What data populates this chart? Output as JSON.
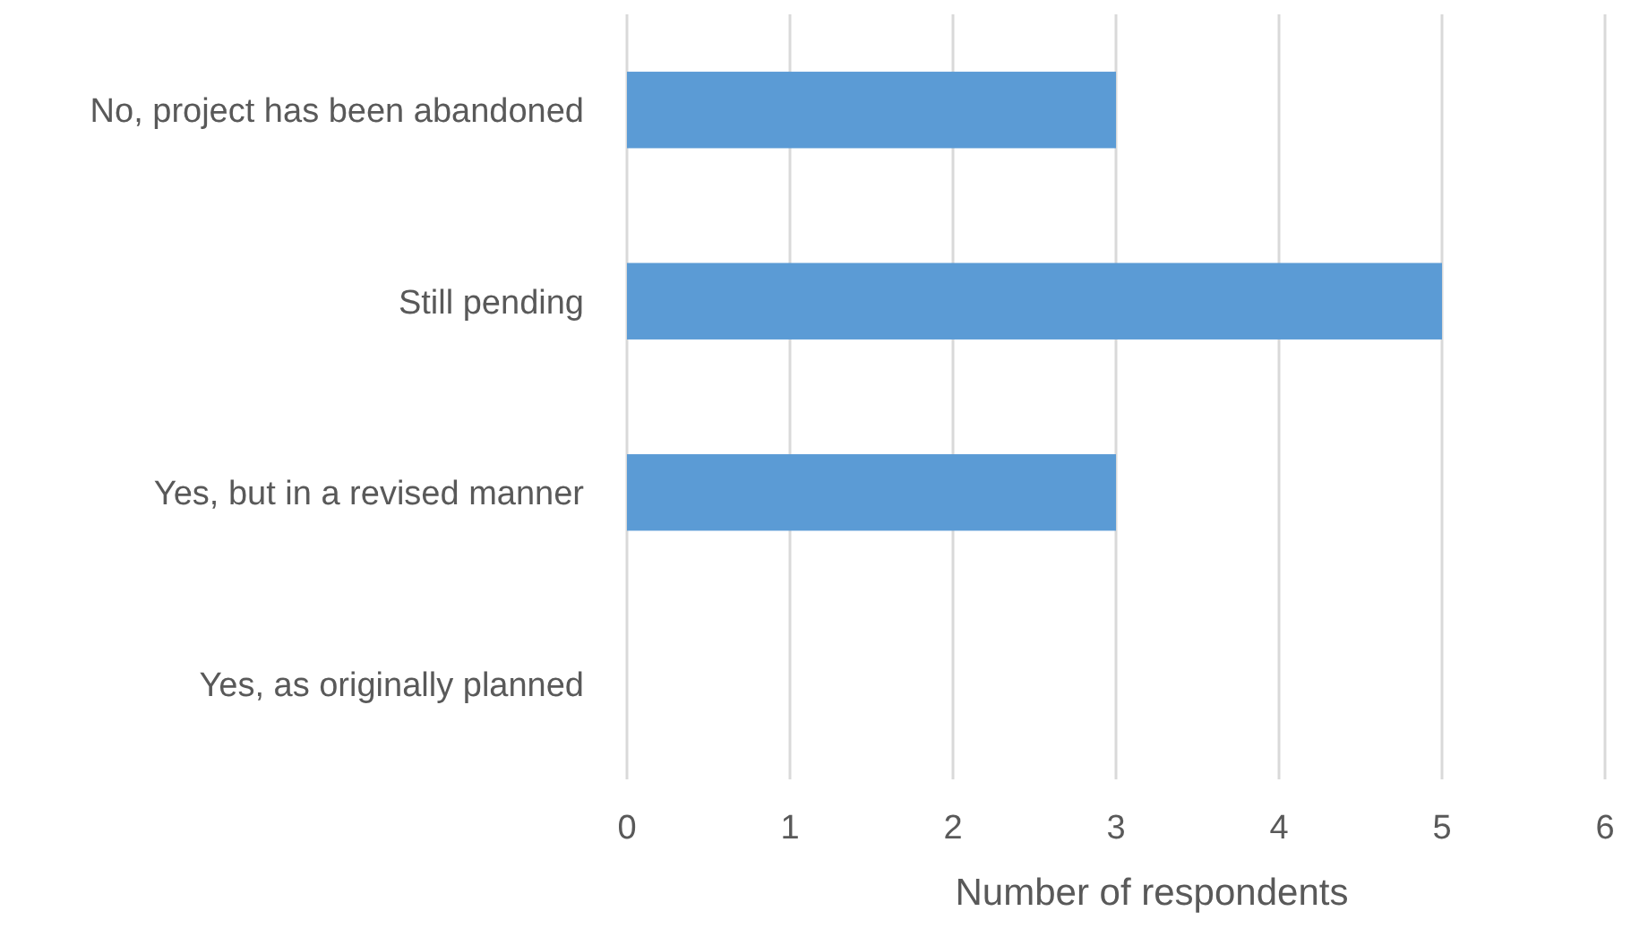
{
  "chart_data": {
    "type": "bar",
    "orientation": "horizontal",
    "xlabel": "Number of respondents",
    "categories": [
      "No, project has been abandoned",
      "Still pending",
      "Yes, but in a revised manner",
      "Yes, as originally planned"
    ],
    "values": [
      3,
      5,
      3,
      0
    ],
    "color": "#5b9bd5",
    "xlim": [
      0,
      6
    ],
    "xticks": [
      0,
      1,
      2,
      3,
      4,
      5,
      6
    ],
    "grid": "x"
  }
}
